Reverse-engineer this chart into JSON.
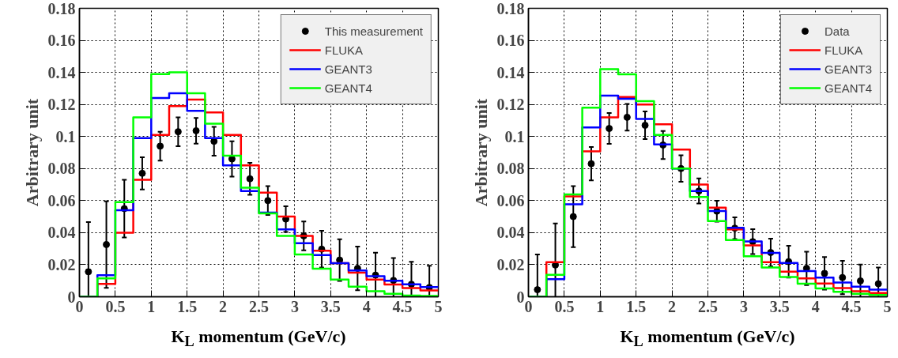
{
  "chart_data": [
    {
      "type": "histogram",
      "xlabel": "K$_{L}$ momentum (GeV/c)",
      "ylabel": "Arbitrary unit",
      "bins": [
        0,
        0.25,
        0.5,
        0.75,
        1,
        1.25,
        1.5,
        1.75,
        2,
        2.25,
        2.5,
        2.75,
        3,
        3.25,
        3.5,
        3.75,
        4,
        4.25,
        4.5,
        4.75,
        5
      ],
      "xlim": [
        0,
        5
      ],
      "ylim": [
        0,
        0.18
      ],
      "xticks": [
        0,
        0.5,
        1,
        1.5,
        2,
        2.5,
        3,
        3.5,
        4,
        4.5,
        5
      ],
      "yticks": [
        0,
        0.02,
        0.04,
        0.06,
        0.08,
        0.1,
        0.12,
        0.14,
        0.16,
        0.18
      ],
      "grid": true,
      "legend": "top right",
      "marker": "circle",
      "series": [
        {
          "name": "This measurement",
          "type": "scatter",
          "color": "#000000",
          "x": [
            0.125,
            0.375,
            0.625,
            0.875,
            1.125,
            1.375,
            1.625,
            1.875,
            2.125,
            2.375,
            2.625,
            2.875,
            3.125,
            3.375,
            3.625,
            3.875,
            4.125,
            4.375,
            4.625,
            4.875
          ],
          "values": [
            0.0156,
            0.0326,
            0.055,
            0.077,
            0.094,
            0.103,
            0.1036,
            0.097,
            0.086,
            0.0736,
            0.06,
            0.0485,
            0.038,
            0.0297,
            0.0229,
            0.0177,
            0.0135,
            0.0102,
            0.0078,
            0.0058
          ],
          "errors": [
            0.031,
            0.027,
            0.018,
            0.01,
            0.009,
            0.009,
            0.008,
            0.009,
            0.011,
            0.01,
            0.009,
            0.008,
            0.009,
            0.0115,
            0.013,
            0.0136,
            0.014,
            0.014,
            0.014,
            0.0136
          ]
        },
        {
          "name": "FLUKA",
          "color": "#ff0000",
          "values": [
            0,
            0.008,
            0.04,
            0.073,
            0.101,
            0.119,
            0.123,
            0.115,
            0.101,
            0.082,
            0.065,
            0.05,
            0.038,
            0.0287,
            0.021,
            0.015,
            0.0107,
            0.0076,
            0.0054,
            0.0039
          ]
        },
        {
          "name": "GEANT3",
          "color": "#0000ff",
          "values": [
            0,
            0.0134,
            0.054,
            0.099,
            0.124,
            0.127,
            0.116,
            0.099,
            0.082,
            0.066,
            0.0525,
            0.042,
            0.0334,
            0.026,
            0.021,
            0.0164,
            0.0128,
            0.01,
            0.0078,
            0.006
          ]
        },
        {
          "name": "GEANT4",
          "color": "#00ff00",
          "values": [
            0,
            0.0115,
            0.059,
            0.112,
            0.139,
            0.14,
            0.127,
            0.108,
            0.088,
            0.068,
            0.052,
            0.038,
            0.0264,
            0.0175,
            0.0107,
            0.0063,
            0.0034,
            0.0018,
            0.0008,
            0.0005
          ]
        }
      ]
    },
    {
      "type": "histogram",
      "xlabel": "K$_{L}$ momentum (GeV/c)",
      "ylabel": "Arbitrary unit",
      "bins": [
        0,
        0.25,
        0.5,
        0.75,
        1,
        1.25,
        1.5,
        1.75,
        2,
        2.25,
        2.5,
        2.75,
        3,
        3.25,
        3.5,
        3.75,
        4,
        4.25,
        4.5,
        4.75,
        5
      ],
      "xlim": [
        0,
        5
      ],
      "ylim": [
        0,
        0.18
      ],
      "xticks": [
        0,
        0.5,
        1,
        1.5,
        2,
        2.5,
        3,
        3.5,
        4,
        4.5,
        5
      ],
      "yticks": [
        0,
        0.02,
        0.04,
        0.06,
        0.08,
        0.1,
        0.12,
        0.14,
        0.16,
        0.18
      ],
      "grid": true,
      "legend": "top right",
      "marker": "circle",
      "series": [
        {
          "name": "Data",
          "type": "scatter",
          "color": "#000000",
          "x": [
            0.125,
            0.375,
            0.625,
            0.875,
            1.125,
            1.375,
            1.625,
            1.875,
            2.125,
            2.375,
            2.625,
            2.875,
            3.125,
            3.375,
            3.625,
            3.875,
            4.125,
            4.375,
            4.625,
            4.875
          ],
          "values": [
            0.0044,
            0.0198,
            0.05,
            0.083,
            0.105,
            0.112,
            0.107,
            0.0947,
            0.08,
            0.066,
            0.0534,
            0.0428,
            0.0344,
            0.0276,
            0.0219,
            0.0177,
            0.0146,
            0.012,
            0.0099,
            0.0081
          ],
          "errors": [
            0.022,
            0.026,
            0.019,
            0.0104,
            0.0096,
            0.0083,
            0.0086,
            0.0088,
            0.0083,
            0.0078,
            0.0065,
            0.0068,
            0.0078,
            0.0086,
            0.0099,
            0.0104,
            0.0102,
            0.0104,
            0.0102,
            0.0102
          ]
        },
        {
          "name": "FLUKA",
          "color": "#ff0000",
          "values": [
            0,
            0.0216,
            0.0626,
            0.0907,
            0.112,
            0.1246,
            0.12,
            0.1076,
            0.0918,
            0.07,
            0.0556,
            0.042,
            0.032,
            0.0216,
            0.0157,
            0.0115,
            0.0083,
            0.0054,
            0.0034,
            0.0024
          ]
        },
        {
          "name": "GEANT3",
          "color": "#0000ff",
          "values": [
            0,
            0.011,
            0.0577,
            0.1056,
            0.1255,
            0.1235,
            0.111,
            0.095,
            0.08,
            0.066,
            0.0535,
            0.043,
            0.0345,
            0.0274,
            0.0211,
            0.016,
            0.012,
            0.0089,
            0.0063,
            0.0045
          ]
        },
        {
          "name": "GEANT4",
          "color": "#00ff00",
          "values": [
            0,
            0.0137,
            0.0639,
            0.118,
            0.142,
            0.1388,
            0.122,
            0.101,
            0.08,
            0.0623,
            0.0472,
            0.0354,
            0.0253,
            0.0182,
            0.0123,
            0.0081,
            0.0052,
            0.0031,
            0.0018,
            0.0011
          ]
        }
      ]
    }
  ]
}
